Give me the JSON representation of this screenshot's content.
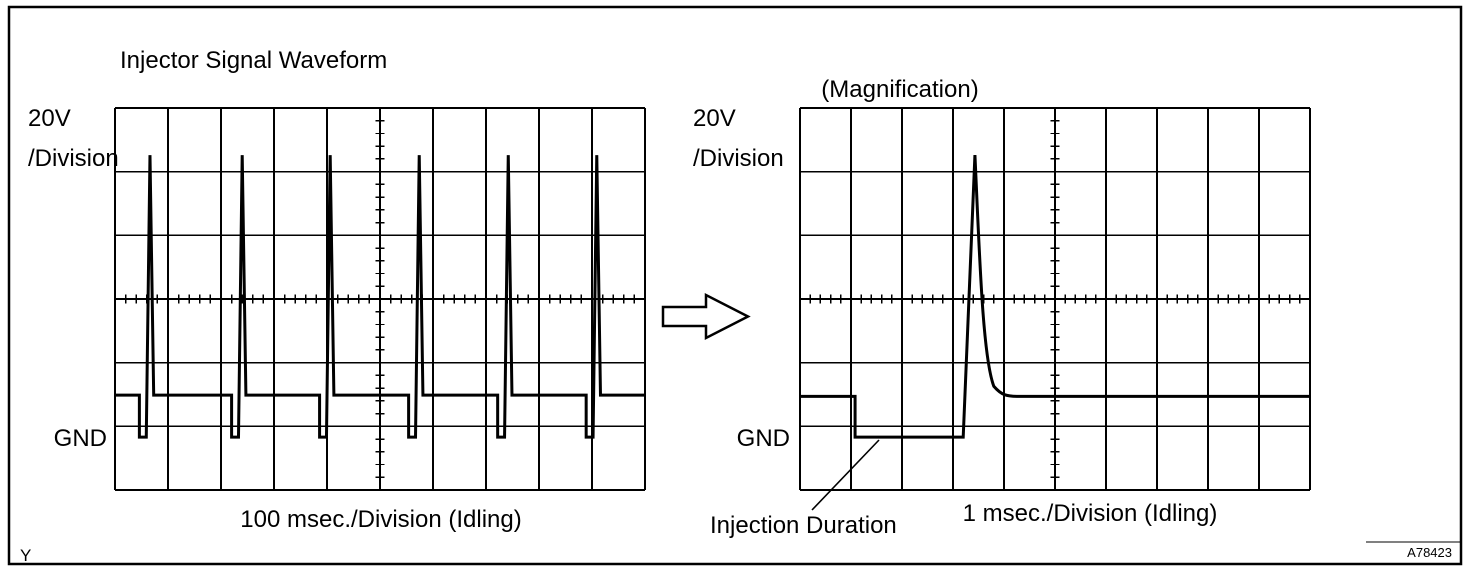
{
  "figure": {
    "corner_label": "Y",
    "code": "A78423"
  },
  "chart_data": [
    {
      "type": "line",
      "panel": "overview",
      "title": "Injector Signal Waveform",
      "xlabel": "100 msec./Division (Idling)",
      "ylabel": "20V/Division",
      "ylabel_lines": [
        "20V",
        "/Division"
      ],
      "gnd_label": "GND",
      "x_per_division": "100 msec.",
      "y_per_division": "20V",
      "grid_cols": 10,
      "grid_rows": 6,
      "grid": "on",
      "waveform": {
        "battery_level_div": 4.51,
        "gnd_level_div": 5.17,
        "peak_level_div": 0.74,
        "pulse_centers_div": [
          0.66,
          2.4,
          4.06,
          5.74,
          7.42,
          9.09
        ],
        "notch_width_div": 0.13,
        "spike_width_div": 0.14
      }
    },
    {
      "type": "line",
      "panel": "magnified",
      "title": "(Magnification)",
      "xlabel": "1 msec./Division (Idling)",
      "ylabel": "20V/Division",
      "ylabel_lines": [
        "20V",
        "/Division"
      ],
      "gnd_label": "GND",
      "annotation": "Injection Duration",
      "x_per_division": "1 msec.",
      "y_per_division": "20V",
      "grid_cols": 10,
      "grid_rows": 6,
      "grid": "on",
      "waveform": {
        "battery_level_div": 4.53,
        "gnd_level_div": 5.17,
        "peak_level_div": 0.74,
        "drop_x_div": 1.08,
        "rise_x_div": 3.2,
        "peak_x_div": 3.43,
        "settle_x_div": 4.3
      }
    }
  ]
}
